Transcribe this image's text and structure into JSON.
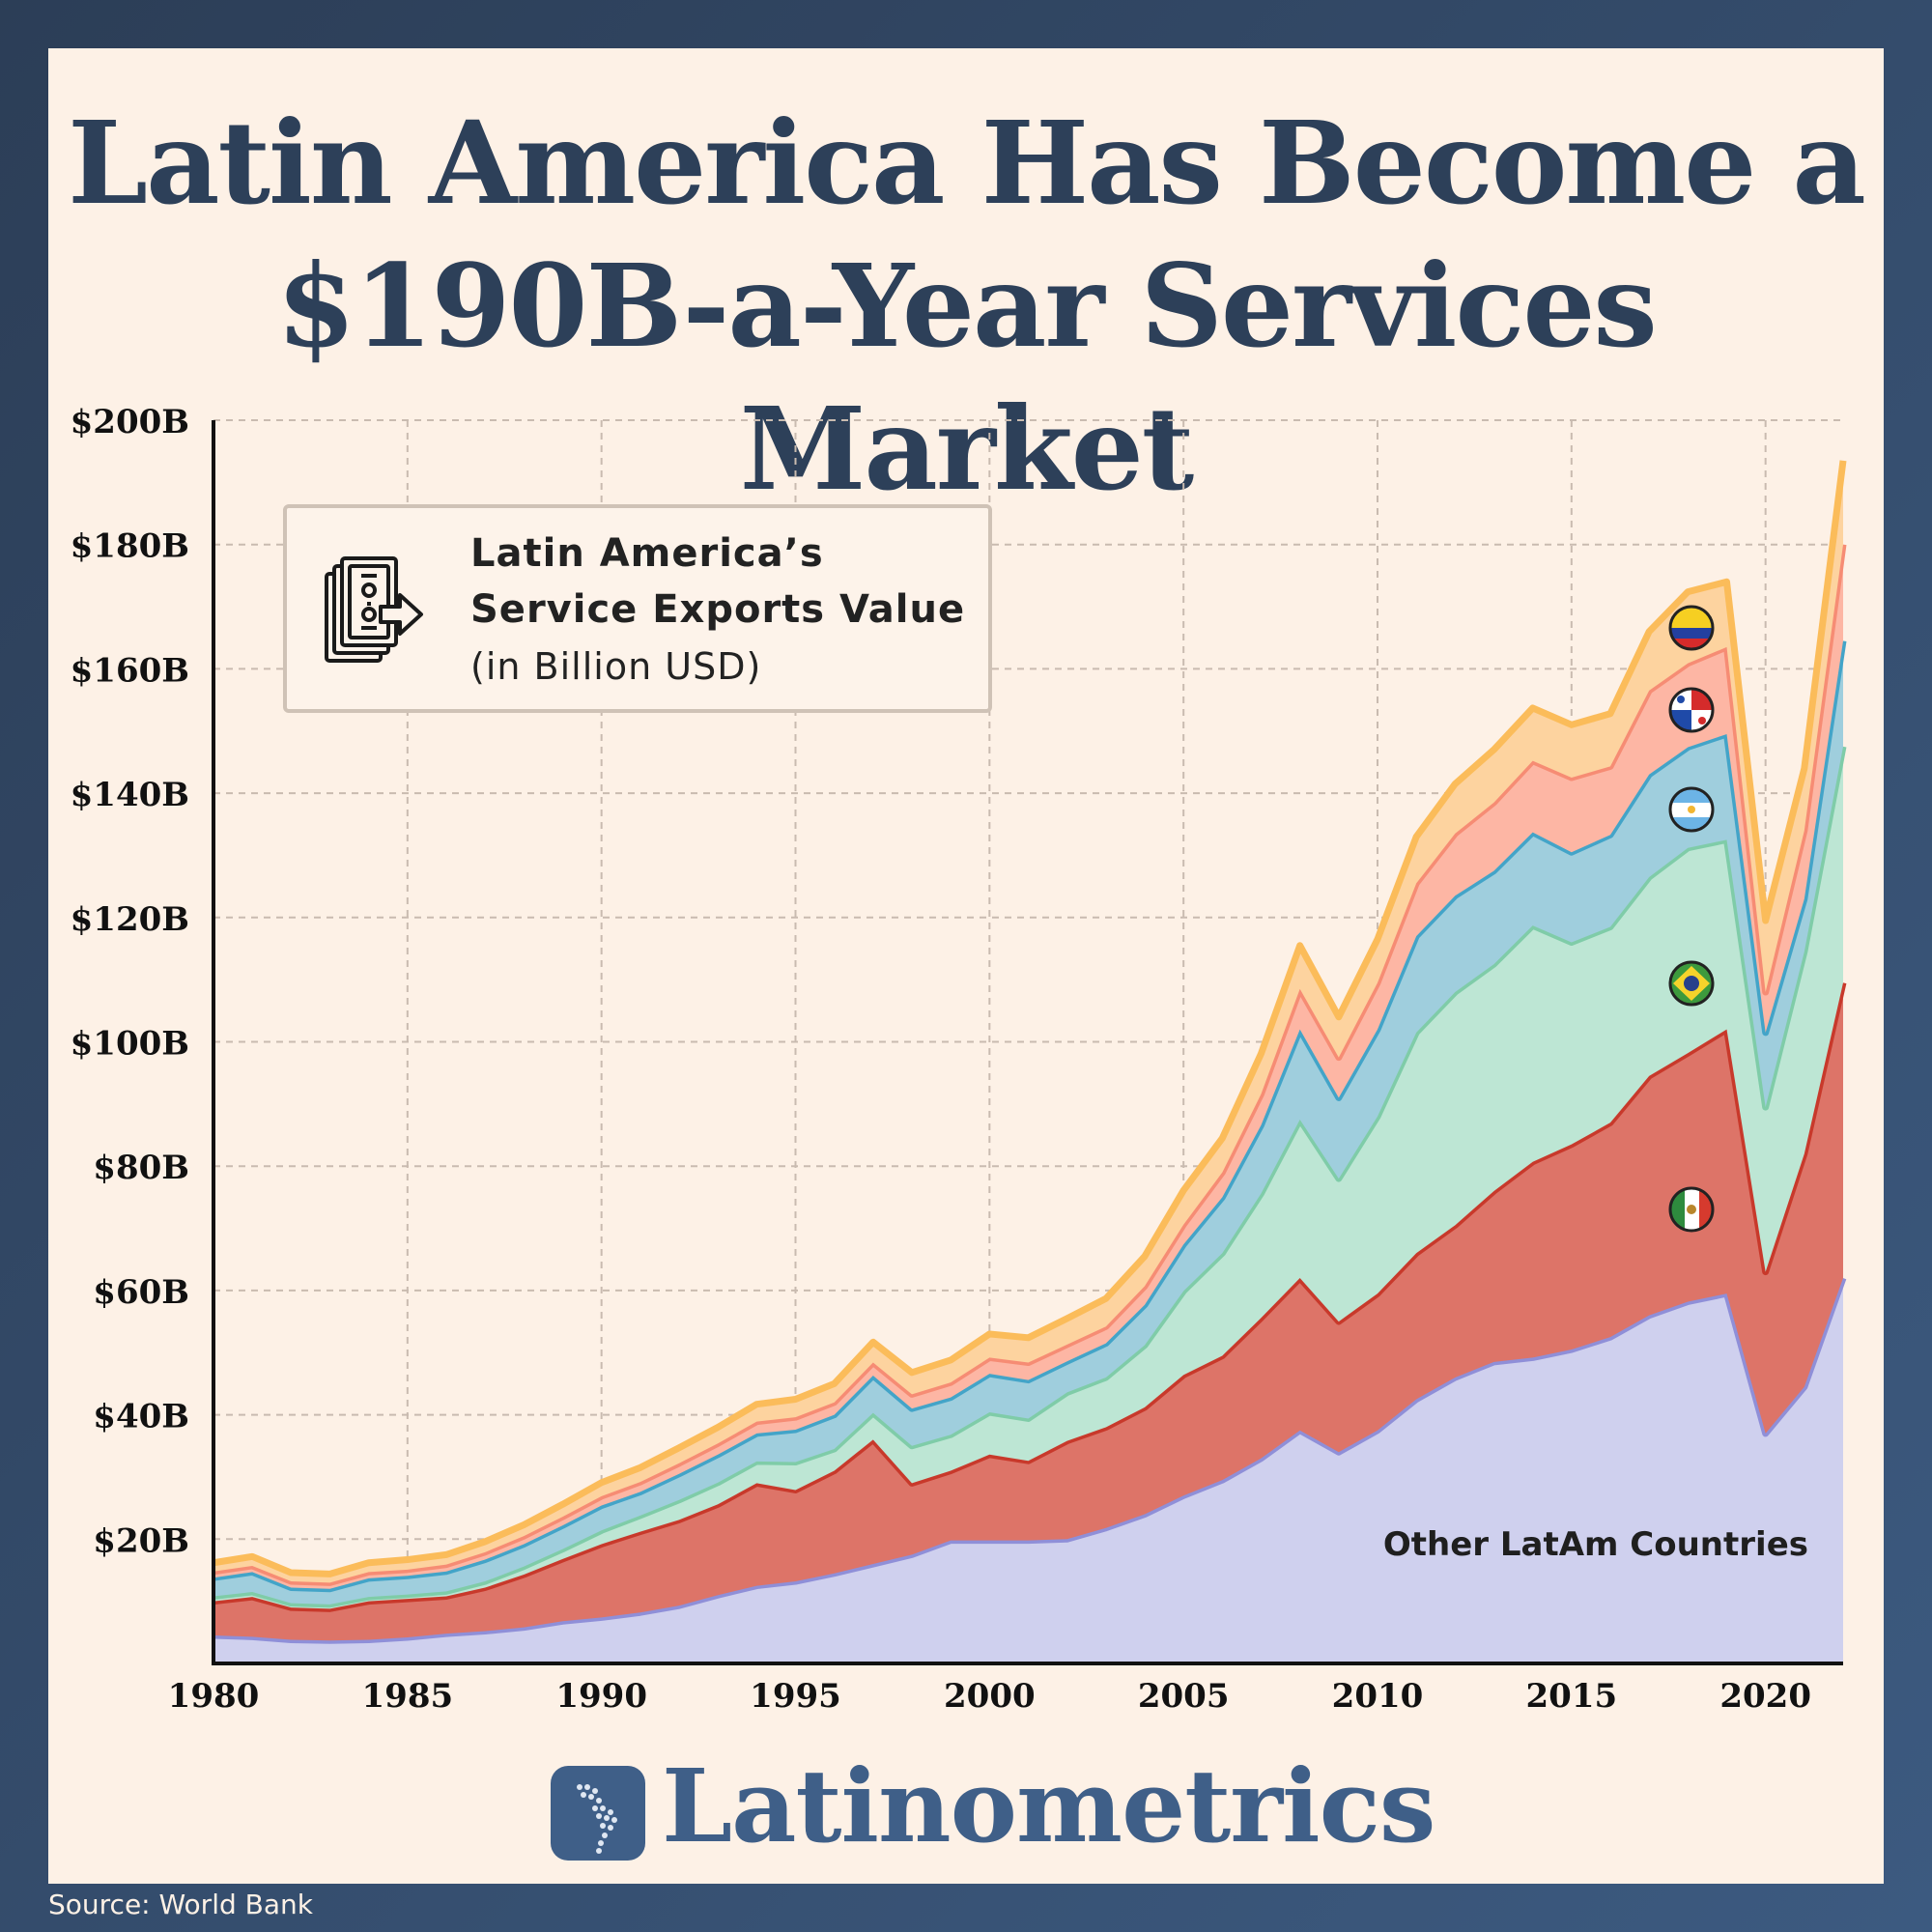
{
  "title": {
    "line1": "Latin America Has Become a",
    "line2": "$190B-a-Year Services Market"
  },
  "legend": {
    "line1": "Latin America’s",
    "line2": "Service Exports Value",
    "sub": "(in Billion USD)",
    "icon": "money-export-icon"
  },
  "brand": {
    "name": "Latinometrics",
    "icon": "latin-america-map-icon"
  },
  "source": "Source: World Bank",
  "chart_data": {
    "type": "area",
    "stacked": true,
    "x": [
      1980,
      1981,
      1982,
      1983,
      1984,
      1985,
      1986,
      1987,
      1988,
      1989,
      1990,
      1991,
      1992,
      1993,
      1994,
      1995,
      1996,
      1997,
      1998,
      1999,
      2000,
      2001,
      2002,
      2003,
      2004,
      2005,
      2006,
      2007,
      2008,
      2009,
      2010,
      2011,
      2012,
      2013,
      2014,
      2015,
      2016,
      2017,
      2018,
      2019,
      2020,
      2021,
      2022
    ],
    "ylim": [
      0,
      200
    ],
    "yticks": [
      20,
      40,
      60,
      80,
      100,
      120,
      140,
      160,
      180,
      200
    ],
    "ytick_labels": [
      "$20B",
      "$40B",
      "$60B",
      "$80B",
      "$100B",
      "$120B",
      "$140B",
      "$160B",
      "$180B",
      "$200B"
    ],
    "xticks": [
      1980,
      1985,
      1990,
      1995,
      2000,
      2005,
      2010,
      2015,
      2020
    ],
    "xtick_labels": [
      "1980",
      "1985",
      "1990",
      "1995",
      "2000",
      "2005",
      "2010",
      "2015",
      "2020"
    ],
    "grid": true,
    "series": [
      {
        "name": "Other LatAm Countries",
        "flag": "",
        "color": "#cfd0ee",
        "line": "#8f8fd8",
        "values": [
          4.5,
          4.3,
          3.8,
          3.7,
          3.8,
          4.2,
          4.8,
          5.2,
          5.8,
          6.8,
          7.4,
          8.2,
          9.3,
          11,
          12.5,
          13.2,
          14.5,
          16,
          17.5,
          19.8,
          19.8,
          19.8,
          20,
          21.8,
          24,
          27,
          29.5,
          33,
          37.5,
          34,
          37.5,
          42.5,
          46,
          48.5,
          49.2,
          50.5,
          52.5,
          56,
          58.2,
          59.5,
          37,
          44.5,
          62
        ]
      },
      {
        "name": "",
        "flag": "mexico-flag-icon",
        "color": "#dd7468",
        "line": "#c8392b",
        "values": [
          5.5,
          6.4,
          5.2,
          5.1,
          6.2,
          6.2,
          6,
          7,
          8.5,
          10,
          11.8,
          13,
          13.8,
          14.6,
          16.5,
          14.7,
          16.5,
          20,
          11.5,
          11.2,
          13.8,
          12.8,
          15.8,
          16.2,
          17.2,
          19.4,
          20,
          22.6,
          24.5,
          21,
          22,
          23.5,
          24.5,
          27.5,
          31.5,
          33,
          34.5,
          38.5,
          40,
          42.5,
          26,
          37.5,
          47.5
        ]
      },
      {
        "name": "",
        "flag": "brazil-flag-icon",
        "color": "#bde6d4",
        "line": "#7fcca8",
        "values": [
          0.8,
          0.8,
          0.7,
          0.7,
          0.7,
          0.7,
          0.8,
          1,
          1.3,
          1.6,
          2.2,
          2.6,
          3.2,
          3.5,
          3.5,
          4.5,
          3.5,
          4.3,
          6,
          5.8,
          6.8,
          6.8,
          7.8,
          8,
          10,
          13.5,
          16.5,
          20,
          25.5,
          23,
          28.5,
          35.5,
          37.5,
          36.5,
          38,
          32.5,
          31.5,
          32,
          33,
          30.5,
          26.5,
          32.5,
          38
        ]
      },
      {
        "name": "",
        "flag": "argentina-flag-icon",
        "color": "#9fcedd",
        "line": "#43a4c8",
        "values": [
          3,
          3.2,
          2.5,
          2.5,
          3,
          3,
          3.2,
          3.5,
          3.6,
          3.8,
          4,
          3.8,
          4.2,
          4.5,
          4.5,
          5.2,
          5.5,
          6,
          6,
          6,
          6.2,
          6.2,
          5,
          5.5,
          6.5,
          7.5,
          9,
          11,
          14.5,
          13,
          14,
          15.5,
          15.5,
          15,
          15,
          14.5,
          14.8,
          16.5,
          16.2,
          17,
          12,
          8.5,
          17
        ]
      },
      {
        "name": "",
        "flag": "panama-flag-icon",
        "color": "#fdb6a4",
        "line": "#f68c74",
        "values": [
          1,
          1,
          1,
          1,
          1,
          1,
          1.1,
          1.2,
          1.3,
          1.4,
          1.5,
          1.6,
          1.7,
          1.8,
          1.9,
          2,
          2,
          2.1,
          2.3,
          2.4,
          2.6,
          2.8,
          2.7,
          2.7,
          3,
          3.2,
          4,
          5,
          6.5,
          6.5,
          7.5,
          8.5,
          10,
          11,
          11.5,
          12,
          11,
          13.5,
          13.5,
          14,
          6.5,
          11,
          15.5
        ]
      },
      {
        "name": "",
        "flag": "colombia-flag-icon",
        "color": "#fdd39f",
        "line": "#fbbc5a",
        "values": [
          1.4,
          1.5,
          1.4,
          1.4,
          1.5,
          1.6,
          1.6,
          1.7,
          1.8,
          2,
          2.2,
          2.3,
          2.5,
          2.6,
          2.8,
          2.9,
          3,
          3.3,
          3.5,
          3.6,
          3.8,
          4,
          4.2,
          4.5,
          4.8,
          5.5,
          5.5,
          6.5,
          7,
          6.5,
          7,
          7.5,
          8,
          8.5,
          8.5,
          8.5,
          8.5,
          9.5,
          11.5,
          10.5,
          11.5,
          10,
          13.5
        ]
      }
    ]
  }
}
